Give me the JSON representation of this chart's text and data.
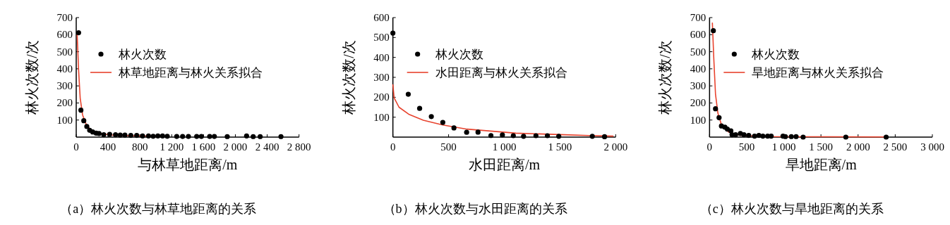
{
  "chart_data": [
    {
      "type": "scatter",
      "title": "（a）林火次数与林草地距离的关系",
      "xlabel": "与林草地距离/m",
      "ylabel": "林火次数/次",
      "xlim": [
        0,
        2800
      ],
      "ylim": [
        0,
        700
      ],
      "xticks": [
        0,
        400,
        800,
        {
          "value": 1200,
          "label": "1 200"
        },
        {
          "value": 1600,
          "label": "1 600"
        },
        {
          "value": 2000,
          "label": "2 000"
        },
        {
          "value": 2400,
          "label": "2 400"
        },
        {
          "value": 2800,
          "label": "2 800"
        }
      ],
      "yticks": [
        100,
        200,
        300,
        400,
        500,
        600,
        700
      ],
      "legend": "top left",
      "series": [
        {
          "name": "林火次数",
          "marker": "circle",
          "color": "#000000",
          "x": [
            30,
            59,
            95,
            133,
            169,
            207,
            251,
            287,
            346,
            420,
            494,
            553,
            612,
            686,
            760,
            834,
            908,
            967,
            1026,
            1085,
            1144,
            1263,
            1337,
            1410,
            1514,
            1573,
            1677,
            1736,
            1898,
            2141,
            2224,
            2312,
            2573
          ],
          "values": [
            611,
            158,
            96,
            62,
            40,
            30,
            23,
            21,
            14,
            16,
            14,
            12,
            12,
            10,
            10,
            7,
            7,
            5,
            7,
            7,
            5,
            4,
            4,
            4,
            4,
            4,
            4,
            4,
            3,
            7,
            3,
            3,
            3
          ]
        },
        {
          "name": "林草地距离与林火关系拟合",
          "type": "line",
          "color": "#e8432e",
          "x": [
            12,
            30,
            50,
            80,
            124,
            183,
            287,
            464,
            819,
            1000
          ],
          "values": [
            598,
            391,
            227,
            130,
            76,
            41,
            21,
            11,
            7,
            5
          ]
        }
      ]
    },
    {
      "type": "scatter",
      "title": "（b）林火次数与水田距离的关系",
      "xlabel": "水田距离/m",
      "ylabel": "林火次数/次",
      "xlim": [
        0,
        2000
      ],
      "ylim": [
        0,
        600
      ],
      "xticks": [
        0,
        500,
        {
          "value": 1000,
          "label": "1 000"
        },
        {
          "value": 1500,
          "label": "1 500"
        },
        {
          "value": 2000,
          "label": "2 000"
        }
      ],
      "yticks": [
        100,
        200,
        300,
        400,
        500,
        600
      ],
      "legend": "top left",
      "series": [
        {
          "name": "林火次数",
          "marker": "circle",
          "color": "#000000",
          "x": [
            0,
            138,
            240,
            345,
            448,
            548,
            662,
            764,
            880,
            983,
            1081,
            1173,
            1284,
            1387,
            1489,
            1790,
            1900
          ],
          "values": [
            522,
            215,
            144,
            103,
            74,
            46,
            24,
            25,
            8,
            11,
            7,
            4,
            7,
            7,
            4,
            4,
            2
          ]
        },
        {
          "name": "水田距离与林火关系拟合",
          "type": "line",
          "color": "#e8432e",
          "x": [
            0,
            11,
            55,
            142,
            273,
            448,
            666,
            1103,
            1539,
            1758,
            1976
          ],
          "values": [
            263,
            197,
            150,
            115,
            85,
            61,
            40,
            20,
            12,
            8,
            5
          ]
        }
      ]
    },
    {
      "type": "scatter",
      "title": "（c）林火次数与旱地距离的关系",
      "xlabel": "旱地距离/m",
      "ylabel": "林火次数/次",
      "xlim": [
        0,
        3000
      ],
      "ylim": [
        0,
        700
      ],
      "xticks": [
        0,
        500,
        {
          "value": 1000,
          "label": "1 000"
        },
        {
          "value": 1500,
          "label": "1 500"
        },
        {
          "value": 2000,
          "label": "2 000"
        },
        {
          "value": 2500,
          "label": "2 500"
        },
        {
          "value": 3000,
          "label": "3 000"
        }
      ],
      "yticks": [
        100,
        200,
        300,
        400,
        500,
        600,
        700
      ],
      "legend": "top left",
      "series": [
        {
          "name": "林火次数",
          "marker": "circle",
          "color": "#000000",
          "x": [
            51,
            80,
            128,
            160,
            207,
            239,
            287,
            303,
            351,
            415,
            463,
            527,
            606,
            664,
            718,
            782,
            830,
            989,
            1021,
            1101,
            1165,
            1260,
            1835,
            2378
          ],
          "values": [
            623,
            166,
            114,
            65,
            58,
            47,
            37,
            14,
            14,
            21,
            14,
            10,
            6,
            10,
            6,
            6,
            6,
            6,
            3,
            3,
            3,
            0,
            0,
            0
          ]
        },
        {
          "name": "旱地距离与林火关系拟合",
          "type": "line",
          "color": "#e8432e",
          "x": [
            38,
            57,
            80,
            112,
            160,
            255,
            415,
            798,
            2393
          ],
          "values": [
            668,
            460,
            252,
            141,
            72,
            30,
            10,
            3,
            1
          ]
        }
      ]
    }
  ]
}
